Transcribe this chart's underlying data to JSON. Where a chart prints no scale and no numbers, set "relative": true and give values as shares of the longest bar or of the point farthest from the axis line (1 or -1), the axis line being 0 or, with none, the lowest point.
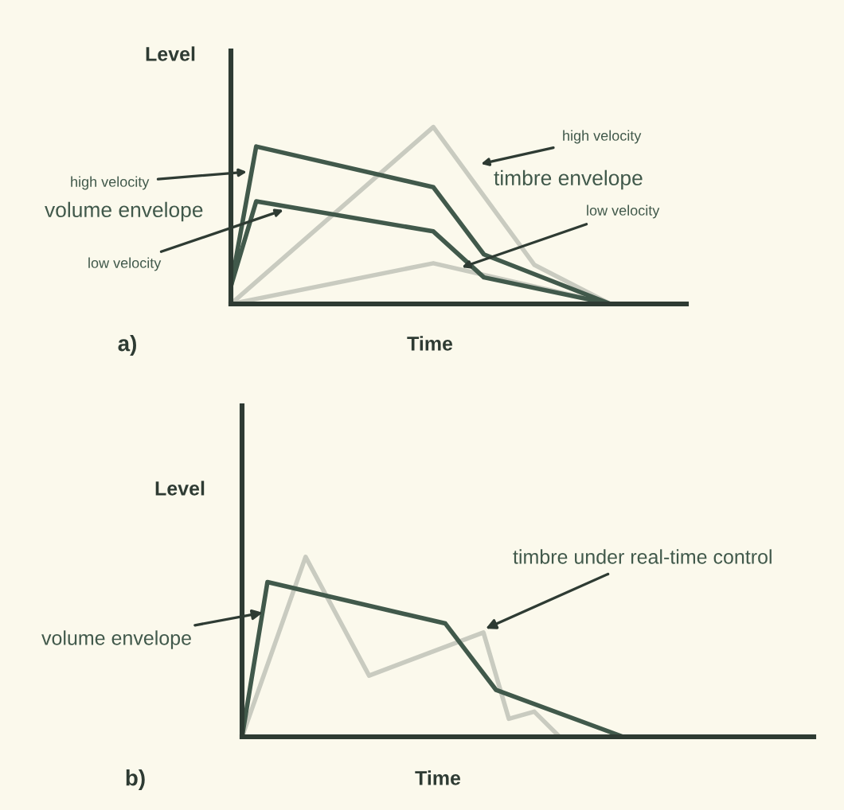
{
  "chart_data": [
    {
      "type": "line",
      "title": "a)",
      "xlabel": "Time",
      "ylabel": "Level",
      "relative": true,
      "tick_labels": false,
      "categories": [
        null,
        null,
        null,
        null,
        null,
        null,
        null,
        null,
        null,
        null,
        null,
        null,
        null,
        null,
        null,
        null,
        null,
        null,
        null,
        null,
        null,
        null,
        null,
        null,
        null,
        null,
        null,
        null,
        null,
        null,
        null,
        null,
        null,
        null,
        null,
        null,
        null
      ],
      "series": [
        {
          "color": "#c9cbc0",
          "values": [
            0,
            null,
            null,
            null,
            null,
            null,
            null,
            null,
            null,
            null,
            null,
            null,
            null,
            null,
            null,
            null,
            1.0,
            null,
            null,
            null,
            null,
            null,
            null,
            null,
            0.22,
            null,
            null,
            null,
            null,
            null,
            0,
            null,
            null,
            null,
            null,
            null,
            null
          ]
        },
        {
          "color": "#c9cbc0",
          "values": [
            0,
            null,
            null,
            null,
            null,
            null,
            null,
            null,
            null,
            null,
            null,
            null,
            null,
            null,
            null,
            null,
            0.23,
            null,
            null,
            null,
            null,
            null,
            null,
            null,
            null,
            null,
            null,
            null,
            null,
            null,
            0,
            null,
            null,
            null,
            null,
            null,
            null
          ]
        },
        {
          "color": "#41594b",
          "values": [
            0.1,
            null,
            0.89,
            null,
            null,
            null,
            null,
            null,
            null,
            null,
            null,
            null,
            null,
            null,
            null,
            null,
            0.66,
            null,
            null,
            null,
            0.28,
            null,
            null,
            null,
            null,
            null,
            null,
            null,
            null,
            null,
            0,
            null,
            null,
            null,
            null,
            null,
            null
          ]
        },
        {
          "color": "#41594b",
          "values": [
            0.1,
            null,
            0.58,
            null,
            null,
            null,
            null,
            null,
            null,
            null,
            null,
            null,
            null,
            null,
            null,
            null,
            0.41,
            null,
            null,
            null,
            0.15,
            null,
            null,
            null,
            null,
            null,
            null,
            null,
            null,
            null,
            0,
            null,
            null,
            null,
            null,
            null,
            null
          ]
        }
      ],
      "annotations": [
        "high velocity",
        "volume envelope",
        "low velocity",
        "high velocity",
        "timbre envelope",
        "low velocity"
      ]
    },
    {
      "type": "line",
      "title": "b)",
      "xlabel": "Time",
      "ylabel": "Level",
      "relative": true,
      "tick_labels": false,
      "categories": [
        null,
        null,
        null,
        null,
        null,
        null,
        null,
        null,
        null,
        null,
        null,
        null,
        null,
        null,
        null,
        null,
        null,
        null,
        null,
        null,
        null,
        null,
        null,
        null,
        null,
        null,
        null,
        null,
        null,
        null,
        null,
        null,
        null,
        null,
        null,
        null,
        null,
        null,
        null,
        null,
        null,
        null,
        null,
        null,
        null,
        null
      ],
      "series": [
        {
          "color": "#c9cbc0",
          "values": [
            0,
            null,
            null,
            null,
            null,
            1.0,
            null,
            null,
            null,
            null,
            0.34,
            null,
            null,
            null,
            null,
            null,
            null,
            null,
            null,
            0.58,
            null,
            0.1,
            null,
            0.14,
            null,
            0,
            null,
            null,
            null,
            null,
            null,
            null,
            null,
            null,
            null,
            null,
            null,
            null,
            null,
            null,
            null,
            null,
            null,
            null,
            null,
            null
          ]
        },
        {
          "color": "#41594b",
          "values": [
            0,
            null,
            0.86,
            null,
            null,
            null,
            null,
            null,
            null,
            null,
            null,
            null,
            null,
            null,
            null,
            null,
            0.63,
            null,
            null,
            null,
            0.26,
            null,
            null,
            null,
            null,
            null,
            null,
            null,
            null,
            null,
            0,
            null,
            null,
            null,
            null,
            null,
            null,
            null,
            null,
            null,
            null,
            null,
            null,
            null,
            null,
            null
          ]
        }
      ],
      "annotations": [
        "timbre under real-time control",
        "volume envelope"
      ]
    }
  ]
}
